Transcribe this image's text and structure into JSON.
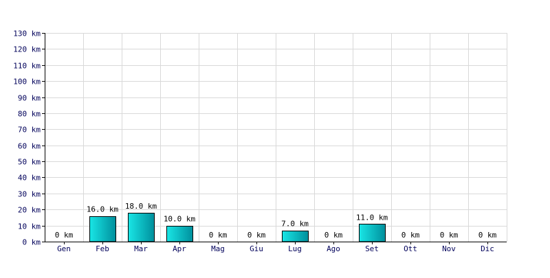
{
  "chart_data": {
    "type": "bar",
    "title": "",
    "xlabel": "",
    "ylabel": "",
    "categories": [
      "Gen",
      "Feb",
      "Mar",
      "Apr",
      "Mag",
      "Giu",
      "Lug",
      "Ago",
      "Set",
      "Ott",
      "Nov",
      "Dic"
    ],
    "values": [
      0,
      16,
      18,
      10,
      0,
      0,
      7,
      0,
      11,
      0,
      0,
      0
    ],
    "value_labels": [
      "0 km",
      "16.0 km",
      "18.0 km",
      "10.0 km",
      "0 km",
      "0 km",
      "7.0 km",
      "0 km",
      "11.0 km",
      "0 km",
      "0 km",
      "0 km"
    ],
    "ylim": [
      0,
      130
    ],
    "yticks": [
      0,
      10,
      20,
      30,
      40,
      50,
      60,
      70,
      80,
      90,
      100,
      110,
      120,
      130
    ],
    "ytick_labels": [
      "0 km",
      "10 km",
      "20 km",
      "30 km",
      "40 km",
      "50 km",
      "60 km",
      "70 km",
      "80 km",
      "90 km",
      "100 km",
      "110 km",
      "120 km",
      "130 km"
    ],
    "grid": true,
    "legend": "none",
    "colors": {
      "bar_light": "#19e6e6",
      "bar_dark": "#008f9c",
      "bar_stroke": "#000000",
      "grid": "#d9d9d9",
      "axis": "#000000",
      "tick_text": "#00005a",
      "label_text": "#000000"
    }
  }
}
